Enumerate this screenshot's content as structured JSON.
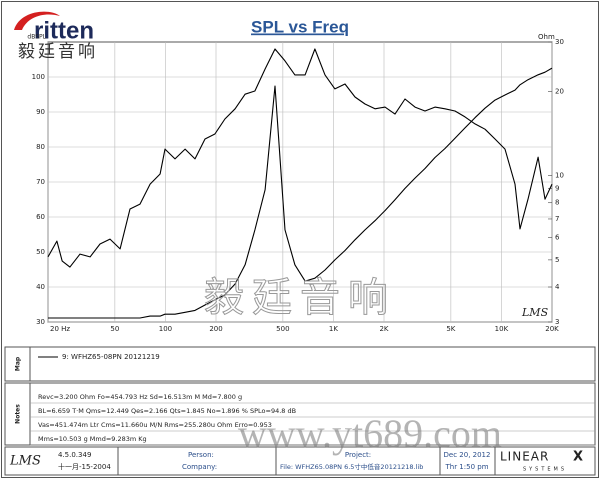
{
  "logo": {
    "brand": "ritten",
    "chinese": "毅廷音响"
  },
  "chart_data": {
    "type": "line",
    "title": "SPL vs Freq",
    "y_label": "dBSPL",
    "y2_label": "Ohm",
    "x": [
      20,
      22.6,
      24.3,
      27,
      31,
      35.6,
      40.8,
      46.8,
      53.7,
      61.5,
      70.6,
      81,
      92.9,
      99.4,
      114,
      131,
      150,
      172,
      197,
      226,
      260,
      298,
      341,
      392,
      449,
      515,
      590,
      678,
      776,
      891,
      1021,
      1172,
      1344,
      1541,
      1767,
      2028,
      2325,
      2667,
      3059,
      3508,
      4025,
      4615,
      5295,
      6073,
      6965,
      7985,
      9163,
      10500,
      12050,
      12900,
      14390,
      16520,
      18160,
      20000
    ],
    "xlim": [
      20,
      20000
    ],
    "x_log": true,
    "xticks": [
      {
        "value": 20,
        "label": "20 Hz"
      },
      50,
      100,
      200,
      500,
      {
        "value": 1000,
        "label": "1K"
      },
      {
        "value": 2000,
        "label": "2K"
      },
      {
        "value": 5000,
        "label": "5K"
      },
      {
        "value": 10000,
        "label": "10K"
      },
      {
        "value": 20000,
        "label": "20K"
      }
    ],
    "ylim": [
      30,
      110
    ],
    "yticks": [
      30,
      40,
      50,
      60,
      70,
      80,
      90,
      100
    ],
    "y2lim": [
      3,
      30
    ],
    "y2_log": true,
    "y2ticks": [
      3,
      4,
      5,
      6,
      7,
      8,
      9,
      10,
      20,
      30
    ],
    "grid": true,
    "series": [
      {
        "name": "9: WFHZ65-08PN 20121219",
        "color": "#000000",
        "values": [
          48.6,
          53.1,
          47.4,
          45.7,
          49.4,
          48.6,
          52.3,
          53.7,
          50.9,
          62.3,
          63.7,
          69.4,
          72.3,
          79.4,
          76.6,
          79.4,
          76.6,
          82.3,
          83.7,
          88,
          90.9,
          95.1,
          96,
          102.3,
          108,
          104.6,
          100.6,
          100.6,
          108,
          100.6,
          96.6,
          98,
          94.3,
          92.3,
          90.9,
          91.4,
          89.4,
          93.7,
          91.4,
          90.3,
          91.4,
          90.9,
          90.3,
          88.6,
          86.6,
          85.1,
          82.3,
          79.4,
          69.4,
          56.6,
          65.1,
          77.1,
          65.1,
          69.4
        ]
      },
      {
        "color": "#000000",
        "axis": "y2",
        "values": [
          3.1,
          3.1,
          3.1,
          3.1,
          3.1,
          3.1,
          3.1,
          3.1,
          3.1,
          3.1,
          3.1,
          3.15,
          3.15,
          3.2,
          3.2,
          3.25,
          3.3,
          3.45,
          3.6,
          3.75,
          4.1,
          4.8,
          6.4,
          8.9,
          20.9,
          6.4,
          4.8,
          4.2,
          4.3,
          4.6,
          5.0,
          5.4,
          5.9,
          6.4,
          6.9,
          7.5,
          8.2,
          9.0,
          9.8,
          10.6,
          11.6,
          12.5,
          13.6,
          14.8,
          16.1,
          17.4,
          18.6,
          19.4,
          20.2,
          21.1,
          22.0,
          22.9,
          23.4,
          24.2
        ]
      }
    ]
  },
  "chart_mark": "LMS",
  "watermark": {
    "chinese": "毅廷音响",
    "url": "www.yt689.com"
  },
  "map_panel": {
    "label": "Map"
  },
  "notes_panel": {
    "label": "Notes",
    "lines": [
      "Revc=3.200 Ohm Fo=454.793 Hz Sd=16.513m M Md=7.800 g",
      "BL=6.659 T·M Qms=12.449 Qes=2.166 Qts=1.845 No=1.896 % SPLo=94.8 dB",
      "Vas=451.474m Ltr Cms=11.660u M/N Rms=255.280u Ohm Erro=0.953",
      "Mms=10.503 g Mmd=9.283m Kg"
    ]
  },
  "footer": {
    "logo": "LMS",
    "version": "4.5.0.349",
    "version_date": "十一月-15-2004",
    "person": "Person:",
    "company": "Company:",
    "project": "Project:",
    "file": "File: WFHZ65.08PN 6.5寸中低音20121218.lib",
    "date": "Dec 20, 2012",
    "time": "Thr 1:50 pm",
    "brand": "LINEAR",
    "brand_x": "X",
    "brand_sub": "SYSTEMS"
  }
}
